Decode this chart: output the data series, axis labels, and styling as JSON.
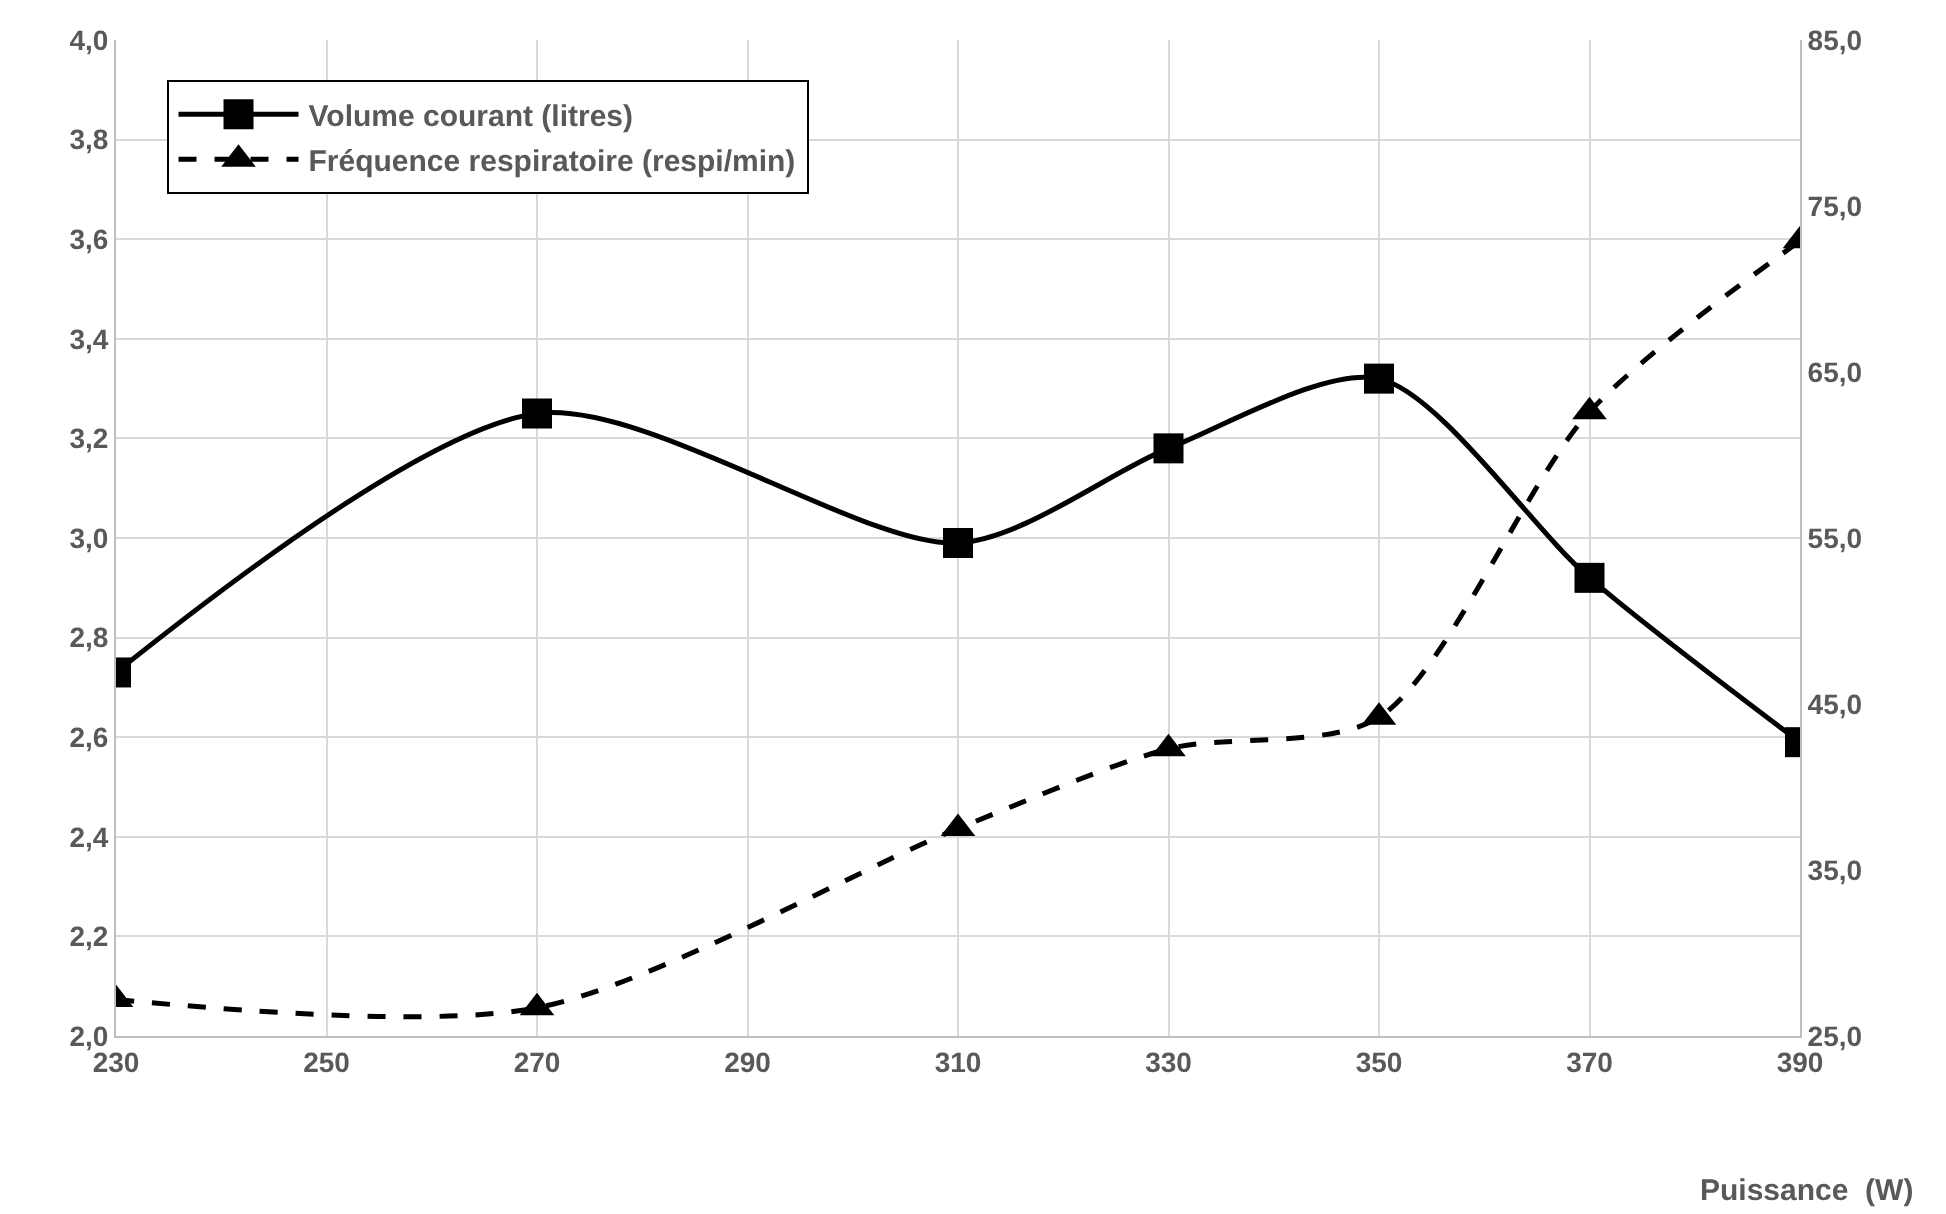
{
  "chart_data": {
    "type": "line",
    "xlabel": "Puissance  (W)",
    "x": [
      230,
      270,
      310,
      330,
      350,
      370,
      390
    ],
    "series": [
      {
        "name": "Volume courant (litres)",
        "color": "#000000",
        "marker": "square",
        "line_style": "solid",
        "values": [
          2.73,
          3.25,
          2.99,
          3.18,
          3.32,
          2.92,
          2.59
        ]
      },
      {
        "name": "Fréquence respiratoire (respi/min)",
        "color": "#000000",
        "marker": "triangle",
        "line_style": "dashed",
        "axis": "y2",
        "values": [
          27.2,
          26.7,
          37.5,
          42.3,
          44.2,
          62.6,
          72.9
        ]
      }
    ],
    "xlim": [
      230,
      390
    ],
    "xticks": [
      230,
      250,
      270,
      290,
      310,
      330,
      350,
      370,
      390
    ],
    "ylim": [
      2.0,
      4.0
    ],
    "yticks": [
      {
        "value": 2.0,
        "label": "2,0"
      },
      {
        "value": 2.2,
        "label": "2,2"
      },
      {
        "value": 2.4,
        "label": "2,4"
      },
      {
        "value": 2.6,
        "label": "2,6"
      },
      {
        "value": 2.8,
        "label": "2,8"
      },
      {
        "value": 3.0,
        "label": "3,0"
      },
      {
        "value": 3.2,
        "label": "3,2"
      },
      {
        "value": 3.4,
        "label": "3,4"
      },
      {
        "value": 3.6,
        "label": "3,6"
      },
      {
        "value": 3.8,
        "label": "3,8"
      },
      {
        "value": 4.0,
        "label": "4,0"
      }
    ],
    "y2lim": [
      25,
      85
    ],
    "y2ticks": [
      {
        "value": 25,
        "label": "25,0"
      },
      {
        "value": 35,
        "label": "35,0"
      },
      {
        "value": 45,
        "label": "45,0"
      },
      {
        "value": 55,
        "label": "55,0"
      },
      {
        "value": 65,
        "label": "65,0"
      },
      {
        "value": 75,
        "label": "75,0"
      },
      {
        "value": 85,
        "label": "85,0"
      }
    ],
    "grid": true,
    "legend": "top left"
  }
}
